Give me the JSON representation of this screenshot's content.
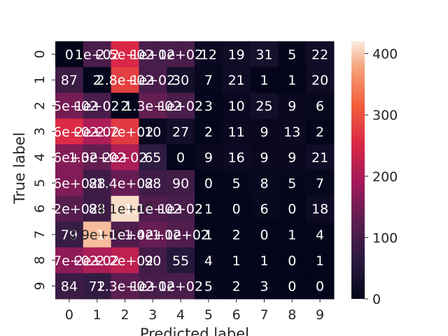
{
  "chart_data": {
    "type": "heatmap",
    "title": "",
    "xlabel": "Predicted label",
    "ylabel": "True label",
    "x_tick_labels": [
      "0",
      "1",
      "2",
      "3",
      "4",
      "5",
      "6",
      "7",
      "8",
      "9"
    ],
    "y_tick_labels": [
      "0",
      "1",
      "2",
      "3",
      "4",
      "5",
      "6",
      "7",
      "8",
      "9"
    ],
    "values": [
      [
        0,
        105,
        252,
        102,
        102,
        12,
        19,
        31,
        5,
        22
      ],
      [
        87,
        2,
        281,
        102,
        30,
        7,
        21,
        1,
        1,
        20
      ],
      [
        150,
        102,
        2,
        132,
        102,
        3,
        10,
        25,
        9,
        6
      ],
      [
        256,
        202,
        272,
        10,
        27,
        2,
        11,
        9,
        13,
        2
      ],
      [
        162,
        132,
        202,
        65,
        0,
        9,
        16,
        9,
        9,
        21
      ],
      [
        160,
        88,
        136,
        88,
        90,
        0,
        5,
        8,
        5,
        7
      ],
      [
        120,
        88,
        412,
        112,
        102,
        1,
        0,
        6,
        0,
        18
      ],
      [
        79,
        392,
        110,
        136,
        112,
        1,
        2,
        0,
        1,
        4
      ],
      [
        171,
        202,
        222,
        90,
        55,
        4,
        1,
        1,
        0,
        1
      ],
      [
        84,
        72,
        127,
        102,
        102,
        5,
        2,
        3,
        0,
        0
      ]
    ],
    "cell_labels": [
      [
        "0",
        "1e+02",
        "2.5e+02",
        "1e+02",
        "1e+02",
        "12",
        "19",
        "31",
        "5",
        "22"
      ],
      [
        "87",
        "2",
        "2.8e+02",
        "1e+02",
        "30",
        "7",
        "21",
        "1",
        "1",
        "20"
      ],
      [
        "1.5e+02",
        "1e+02",
        "2",
        "1.3e+02",
        "1e+02",
        "3",
        "10",
        "25",
        "9",
        "6"
      ],
      [
        "2.6e+02",
        "2e+02",
        "2.7e+02",
        "10",
        "27",
        "2",
        "11",
        "9",
        "13",
        "2"
      ],
      [
        "1.6e+02",
        "1.3e+02",
        "2e+02",
        "65",
        "0",
        "9",
        "16",
        "9",
        "9",
        "21"
      ],
      [
        "1.6e+02",
        "88",
        "1.4e+02",
        "88",
        "90",
        "0",
        "5",
        "8",
        "5",
        "7"
      ],
      [
        "1.2e+02",
        "88",
        "4.1e+02",
        "1.1e+02",
        "1e+02",
        "1",
        "0",
        "6",
        "0",
        "18"
      ],
      [
        "79",
        "3.9e+02",
        "1.1e+02",
        "1.4e+02",
        "1.1e+02",
        "1",
        "2",
        "0",
        "1",
        "4"
      ],
      [
        "1.7e+02",
        "2e+02",
        "2.2e+02",
        "90",
        "55",
        "4",
        "1",
        "1",
        "0",
        "1"
      ],
      [
        "84",
        "72",
        "1.3e+02",
        "1e+02",
        "1e+02",
        "5",
        "2",
        "3",
        "0",
        "0"
      ]
    ],
    "colorbar": {
      "range": [
        0,
        420
      ],
      "ticks": [
        0,
        100,
        200,
        300,
        400
      ],
      "colormap": "rocket"
    }
  }
}
